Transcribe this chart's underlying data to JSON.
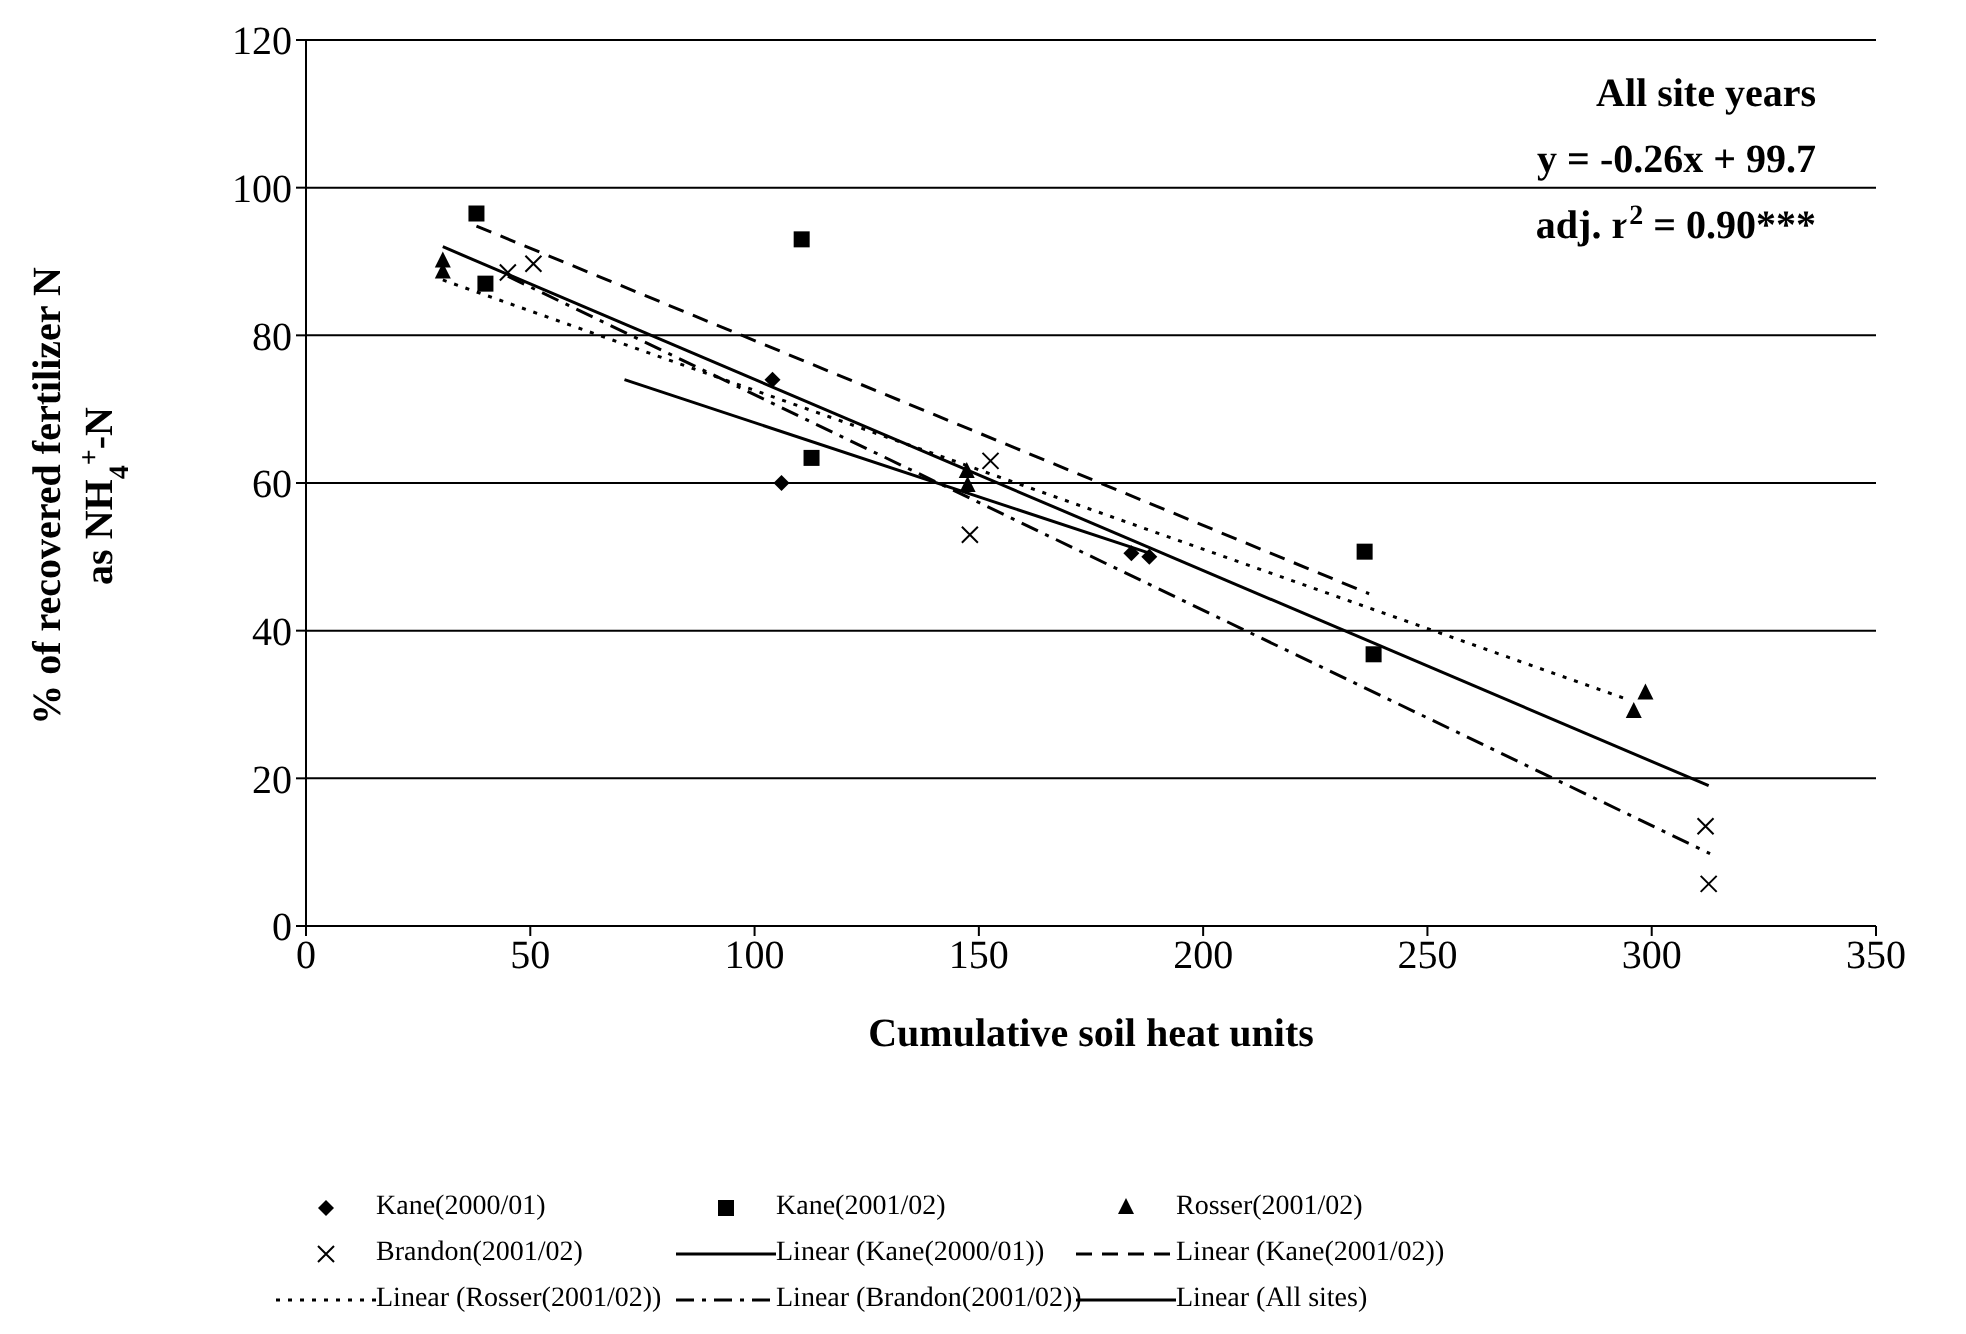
{
  "chart_data": {
    "type": "scatter",
    "xlabel": "Cumulative soil heat units",
    "ylabel": "% of recovered fertilizer N as NH$_{4}$$^{+}$-N",
    "annotations": [
      "All site years",
      "y = -0.26x + 99.7",
      "adj. r$^{2}$ = 0.90***"
    ],
    "xlim": [
      0,
      350
    ],
    "xticks": [
      0,
      50,
      100,
      150,
      200,
      250,
      300,
      350
    ],
    "ylim": [
      0,
      120
    ],
    "yticks": [
      0,
      20,
      40,
      60,
      80,
      100,
      120
    ],
    "grid": "y",
    "legend": "bottom",
    "series": [
      {
        "name": "Kane(2000/01)",
        "marker": "diamond",
        "color": "#000000",
        "x": [
          104,
          106,
          184,
          188
        ],
        "values": [
          74,
          60,
          50.5,
          50
        ]
      },
      {
        "name": "Kane(2001/02)",
        "marker": "square",
        "color": "#000000",
        "x": [
          38,
          40,
          110.5,
          112.7,
          236,
          238
        ],
        "values": [
          96.5,
          87,
          93,
          63.4,
          50.7,
          36.8
        ]
      },
      {
        "name": "Rosser(2001/02)",
        "marker": "triangle",
        "color": "#000000",
        "x": [
          30.5,
          30.5,
          147.3,
          147.5,
          296,
          298.6
        ],
        "values": [
          90,
          88.5,
          61.5,
          59.6,
          29,
          31.5
        ]
      },
      {
        "name": "Brandon(2001/02)",
        "marker": "cross",
        "color": "#000000",
        "x": [
          45,
          50.7,
          148,
          152.6,
          312,
          312.7
        ],
        "values": [
          88.5,
          89.7,
          53,
          63,
          13.5,
          5.7
        ]
      },
      {
        "name": "Linear (Kane(2000/01))",
        "type": "line",
        "line_style": "solid",
        "color": "#000000",
        "x": [
          71,
          188
        ],
        "values": [
          74,
          50.5
        ]
      },
      {
        "name": "Linear (Kane(2001/02))",
        "type": "line",
        "line_style": "dashed",
        "color": "#000000",
        "x": [
          38,
          237
        ],
        "values": [
          94.8,
          45
        ]
      },
      {
        "name": "Linear (Rosser(2001/02))",
        "type": "line",
        "line_style": "dotted",
        "color": "#000000",
        "x": [
          30.5,
          295
        ],
        "values": [
          87.5,
          30.6
        ]
      },
      {
        "name": "Linear (Brandon(2001/02))",
        "type": "line",
        "line_style": "dashdot",
        "color": "#000000",
        "x": [
          45,
          313
        ],
        "values": [
          88,
          9.8
        ]
      },
      {
        "name": "Linear (All sites)",
        "type": "line",
        "line_style": "solid",
        "color": "#000000",
        "x": [
          30.5,
          312.7
        ],
        "values": [
          92,
          19
        ]
      }
    ]
  }
}
